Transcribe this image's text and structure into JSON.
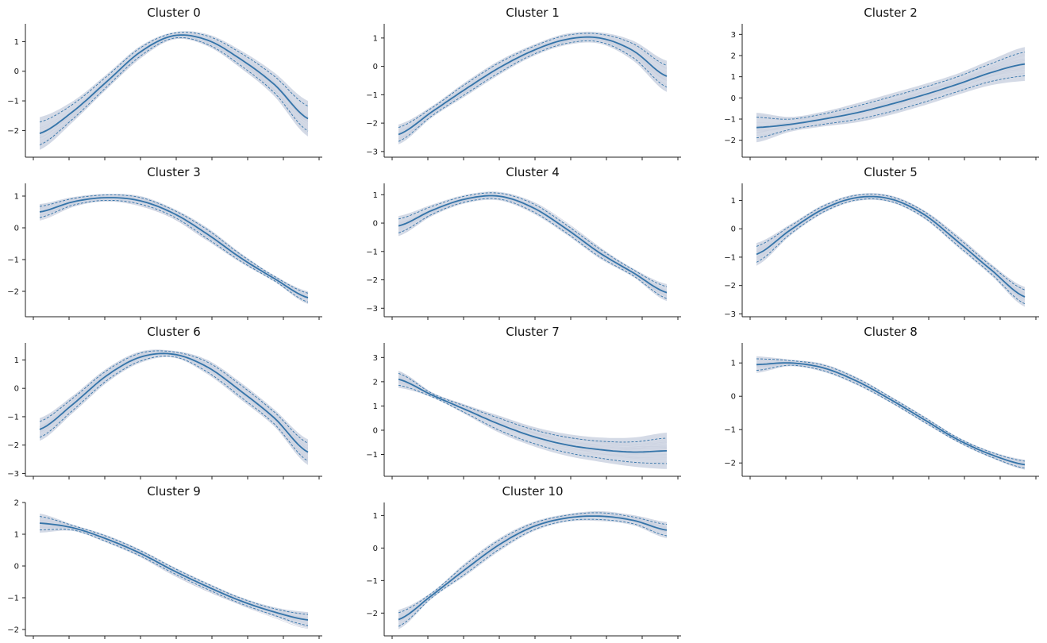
{
  "figure": {
    "num_panels": 11,
    "layout": "4 rows x 3 columns"
  },
  "style": {
    "mean_color": "#3474a9",
    "band_color": "#cdd3e2",
    "background_line_color": "#b8bcd0",
    "axis_color": "#222222"
  },
  "chart_data": [
    {
      "type": "line",
      "title": "Cluster 0",
      "ylim": [
        -2.9,
        1.6
      ],
      "yticks": [
        -2,
        -1,
        0,
        1
      ],
      "x": [
        0,
        0.125,
        0.25,
        0.375,
        0.5,
        0.625,
        0.75,
        0.875,
        1
      ],
      "mean": [
        -2.1,
        -1.35,
        -0.35,
        0.65,
        1.2,
        1.05,
        0.4,
        -0.45,
        -1.6
      ],
      "band_halfwidth": [
        0.55,
        0.35,
        0.25,
        0.2,
        0.12,
        0.2,
        0.3,
        0.4,
        0.6
      ]
    },
    {
      "type": "line",
      "title": "Cluster 1",
      "ylim": [
        -3.2,
        1.5
      ],
      "yticks": [
        -3,
        -2,
        -1,
        0,
        1
      ],
      "x": [
        0,
        0.125,
        0.25,
        0.375,
        0.5,
        0.625,
        0.75,
        0.875,
        1
      ],
      "mean": [
        -2.4,
        -1.6,
        -0.8,
        -0.05,
        0.55,
        0.95,
        1.0,
        0.55,
        -0.35
      ],
      "band_halfwidth": [
        0.35,
        0.2,
        0.25,
        0.25,
        0.2,
        0.2,
        0.2,
        0.35,
        0.55
      ]
    },
    {
      "type": "line",
      "title": "Cluster 2",
      "ylim": [
        -2.8,
        3.5
      ],
      "yticks": [
        -2,
        -1,
        0,
        1,
        2,
        3
      ],
      "x": [
        0,
        0.125,
        0.25,
        0.375,
        0.5,
        0.625,
        0.75,
        0.875,
        1
      ],
      "mean": [
        -1.4,
        -1.25,
        -1.0,
        -0.7,
        -0.3,
        0.15,
        0.65,
        1.2,
        1.6
      ],
      "band_halfwidth": [
        0.7,
        0.35,
        0.35,
        0.45,
        0.5,
        0.5,
        0.5,
        0.6,
        0.8
      ]
    },
    {
      "type": "line",
      "title": "Cluster 3",
      "ylim": [
        -2.8,
        1.4
      ],
      "yticks": [
        -2,
        -1,
        0,
        1
      ],
      "x": [
        0,
        0.125,
        0.25,
        0.375,
        0.5,
        0.625,
        0.75,
        0.875,
        1
      ],
      "mean": [
        0.5,
        0.82,
        0.95,
        0.85,
        0.45,
        -0.2,
        -0.95,
        -1.6,
        -2.2
      ],
      "band_halfwidth": [
        0.25,
        0.15,
        0.12,
        0.15,
        0.15,
        0.2,
        0.15,
        0.1,
        0.2
      ]
    },
    {
      "type": "line",
      "title": "Cluster 4",
      "ylim": [
        -3.3,
        1.4
      ],
      "yticks": [
        -3,
        -2,
        -1,
        0,
        1
      ],
      "x": [
        0,
        0.125,
        0.25,
        0.375,
        0.5,
        0.625,
        0.75,
        0.875,
        1
      ],
      "mean": [
        -0.1,
        0.45,
        0.85,
        0.95,
        0.55,
        -0.2,
        -1.05,
        -1.75,
        -2.45
      ],
      "band_halfwidth": [
        0.35,
        0.2,
        0.15,
        0.15,
        0.2,
        0.2,
        0.2,
        0.15,
        0.3
      ]
    },
    {
      "type": "line",
      "title": "Cluster 5",
      "ylim": [
        -3.1,
        1.6
      ],
      "yticks": [
        -3,
        -2,
        -1,
        0,
        1
      ],
      "x": [
        0,
        0.125,
        0.25,
        0.375,
        0.5,
        0.625,
        0.75,
        0.875,
        1
      ],
      "mean": [
        -0.9,
        -0.05,
        0.7,
        1.1,
        1.05,
        0.5,
        -0.45,
        -1.45,
        -2.4
      ],
      "band_halfwidth": [
        0.4,
        0.2,
        0.15,
        0.12,
        0.12,
        0.15,
        0.2,
        0.2,
        0.35
      ]
    },
    {
      "type": "line",
      "title": "Cluster 6",
      "ylim": [
        -3.1,
        1.6
      ],
      "yticks": [
        -3,
        -2,
        -1,
        0,
        1
      ],
      "x": [
        0,
        0.125,
        0.25,
        0.375,
        0.5,
        0.625,
        0.75,
        0.875,
        1
      ],
      "mean": [
        -1.45,
        -0.55,
        0.45,
        1.1,
        1.2,
        0.75,
        -0.1,
        -1.05,
        -2.25
      ],
      "band_halfwidth": [
        0.4,
        0.3,
        0.25,
        0.2,
        0.12,
        0.25,
        0.3,
        0.3,
        0.45
      ]
    },
    {
      "type": "line",
      "title": "Cluster 7",
      "ylim": [
        -1.9,
        3.6
      ],
      "yticks": [
        -1,
        0,
        1,
        2,
        3
      ],
      "x": [
        0,
        0.125,
        0.25,
        0.375,
        0.5,
        0.625,
        0.75,
        0.875,
        1
      ],
      "mean": [
        2.1,
        1.45,
        0.85,
        0.25,
        -0.25,
        -0.6,
        -0.8,
        -0.9,
        -0.85
      ],
      "band_halfwidth": [
        0.35,
        0.1,
        0.2,
        0.35,
        0.4,
        0.45,
        0.5,
        0.6,
        0.75
      ]
    },
    {
      "type": "line",
      "title": "Cluster 8",
      "ylim": [
        -2.4,
        1.6
      ],
      "yticks": [
        -2,
        -1,
        0,
        1
      ],
      "x": [
        0,
        0.125,
        0.25,
        0.375,
        0.5,
        0.625,
        0.75,
        0.875,
        1
      ],
      "mean": [
        0.95,
        1.0,
        0.85,
        0.45,
        -0.1,
        -0.7,
        -1.3,
        -1.75,
        -2.05
      ],
      "band_halfwidth": [
        0.25,
        0.1,
        0.12,
        0.12,
        0.1,
        0.1,
        0.08,
        0.1,
        0.15
      ]
    },
    {
      "type": "line",
      "title": "Cluster 9",
      "ylim": [
        -2.2,
        2.0
      ],
      "yticks": [
        -2,
        -1,
        0,
        1,
        2
      ],
      "x": [
        0,
        0.125,
        0.25,
        0.375,
        0.5,
        0.625,
        0.75,
        0.875,
        1
      ],
      "mean": [
        1.35,
        1.2,
        0.85,
        0.4,
        -0.15,
        -0.65,
        -1.1,
        -1.45,
        -1.7
      ],
      "band_halfwidth": [
        0.3,
        0.1,
        0.12,
        0.12,
        0.12,
        0.12,
        0.12,
        0.15,
        0.25
      ]
    },
    {
      "type": "line",
      "title": "Cluster 10",
      "ylim": [
        -2.7,
        1.4
      ],
      "yticks": [
        -2,
        -1,
        0,
        1
      ],
      "x": [
        0,
        0.125,
        0.25,
        0.375,
        0.5,
        0.625,
        0.75,
        0.875,
        1
      ],
      "mean": [
        -2.2,
        -1.45,
        -0.65,
        0.1,
        0.65,
        0.92,
        0.98,
        0.85,
        0.55
      ],
      "band_halfwidth": [
        0.3,
        0.1,
        0.2,
        0.2,
        0.15,
        0.12,
        0.15,
        0.15,
        0.25
      ]
    }
  ]
}
